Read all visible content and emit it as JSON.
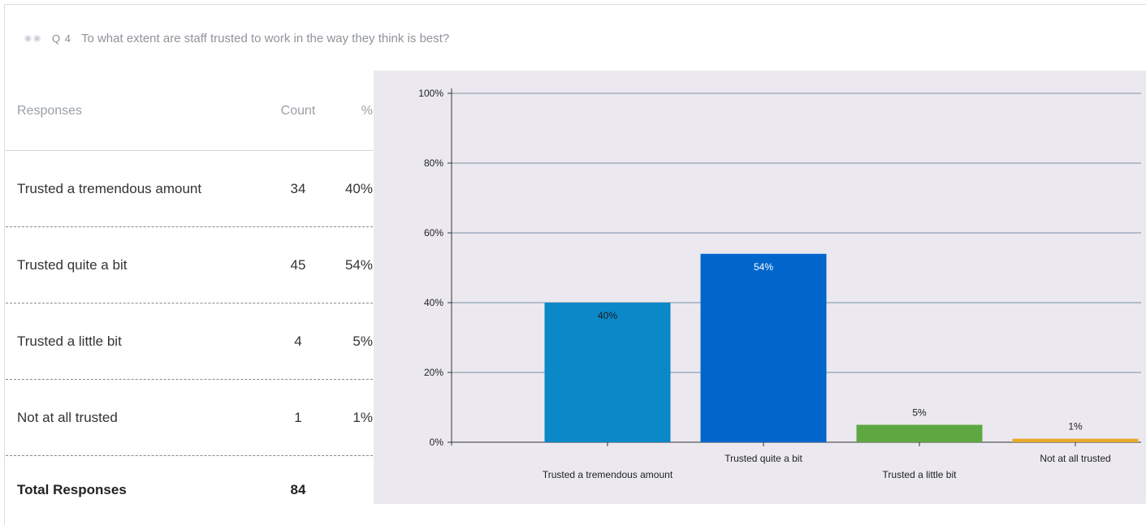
{
  "question": {
    "number": "Q 4",
    "text": "To what extent are staff trusted to work in the way they think is best?",
    "icon": "radio-dots-icon"
  },
  "table": {
    "headers": {
      "label": "Responses",
      "count": "Count",
      "pct": "%"
    },
    "rows": [
      {
        "label": "Trusted a tremendous amount",
        "count": "34",
        "pct": "40%"
      },
      {
        "label": "Trusted quite a bit",
        "count": "45",
        "pct": "54%"
      },
      {
        "label": "Trusted a little bit",
        "count": "4",
        "pct": "5%"
      },
      {
        "label": "Not at all trusted",
        "count": "1",
        "pct": "1%"
      }
    ],
    "total": {
      "label": "Total Responses",
      "count": "84"
    }
  },
  "chart_data": {
    "type": "bar",
    "categories": [
      "Trusted a tremendous amount",
      "Trusted quite a bit",
      "Trusted a little bit",
      "Not at all trusted"
    ],
    "values": [
      40,
      54,
      5,
      1
    ],
    "data_labels": [
      "40%",
      "54%",
      "5%",
      "1%"
    ],
    "colors": [
      "#0a88c8",
      "#0066cc",
      "#5ea842",
      "#e8a82a"
    ],
    "ylim": [
      0,
      100
    ],
    "yticks": [
      "0%",
      "20%",
      "40%",
      "60%",
      "80%",
      "100%"
    ],
    "grid": true,
    "background": "#ebe9ef"
  }
}
